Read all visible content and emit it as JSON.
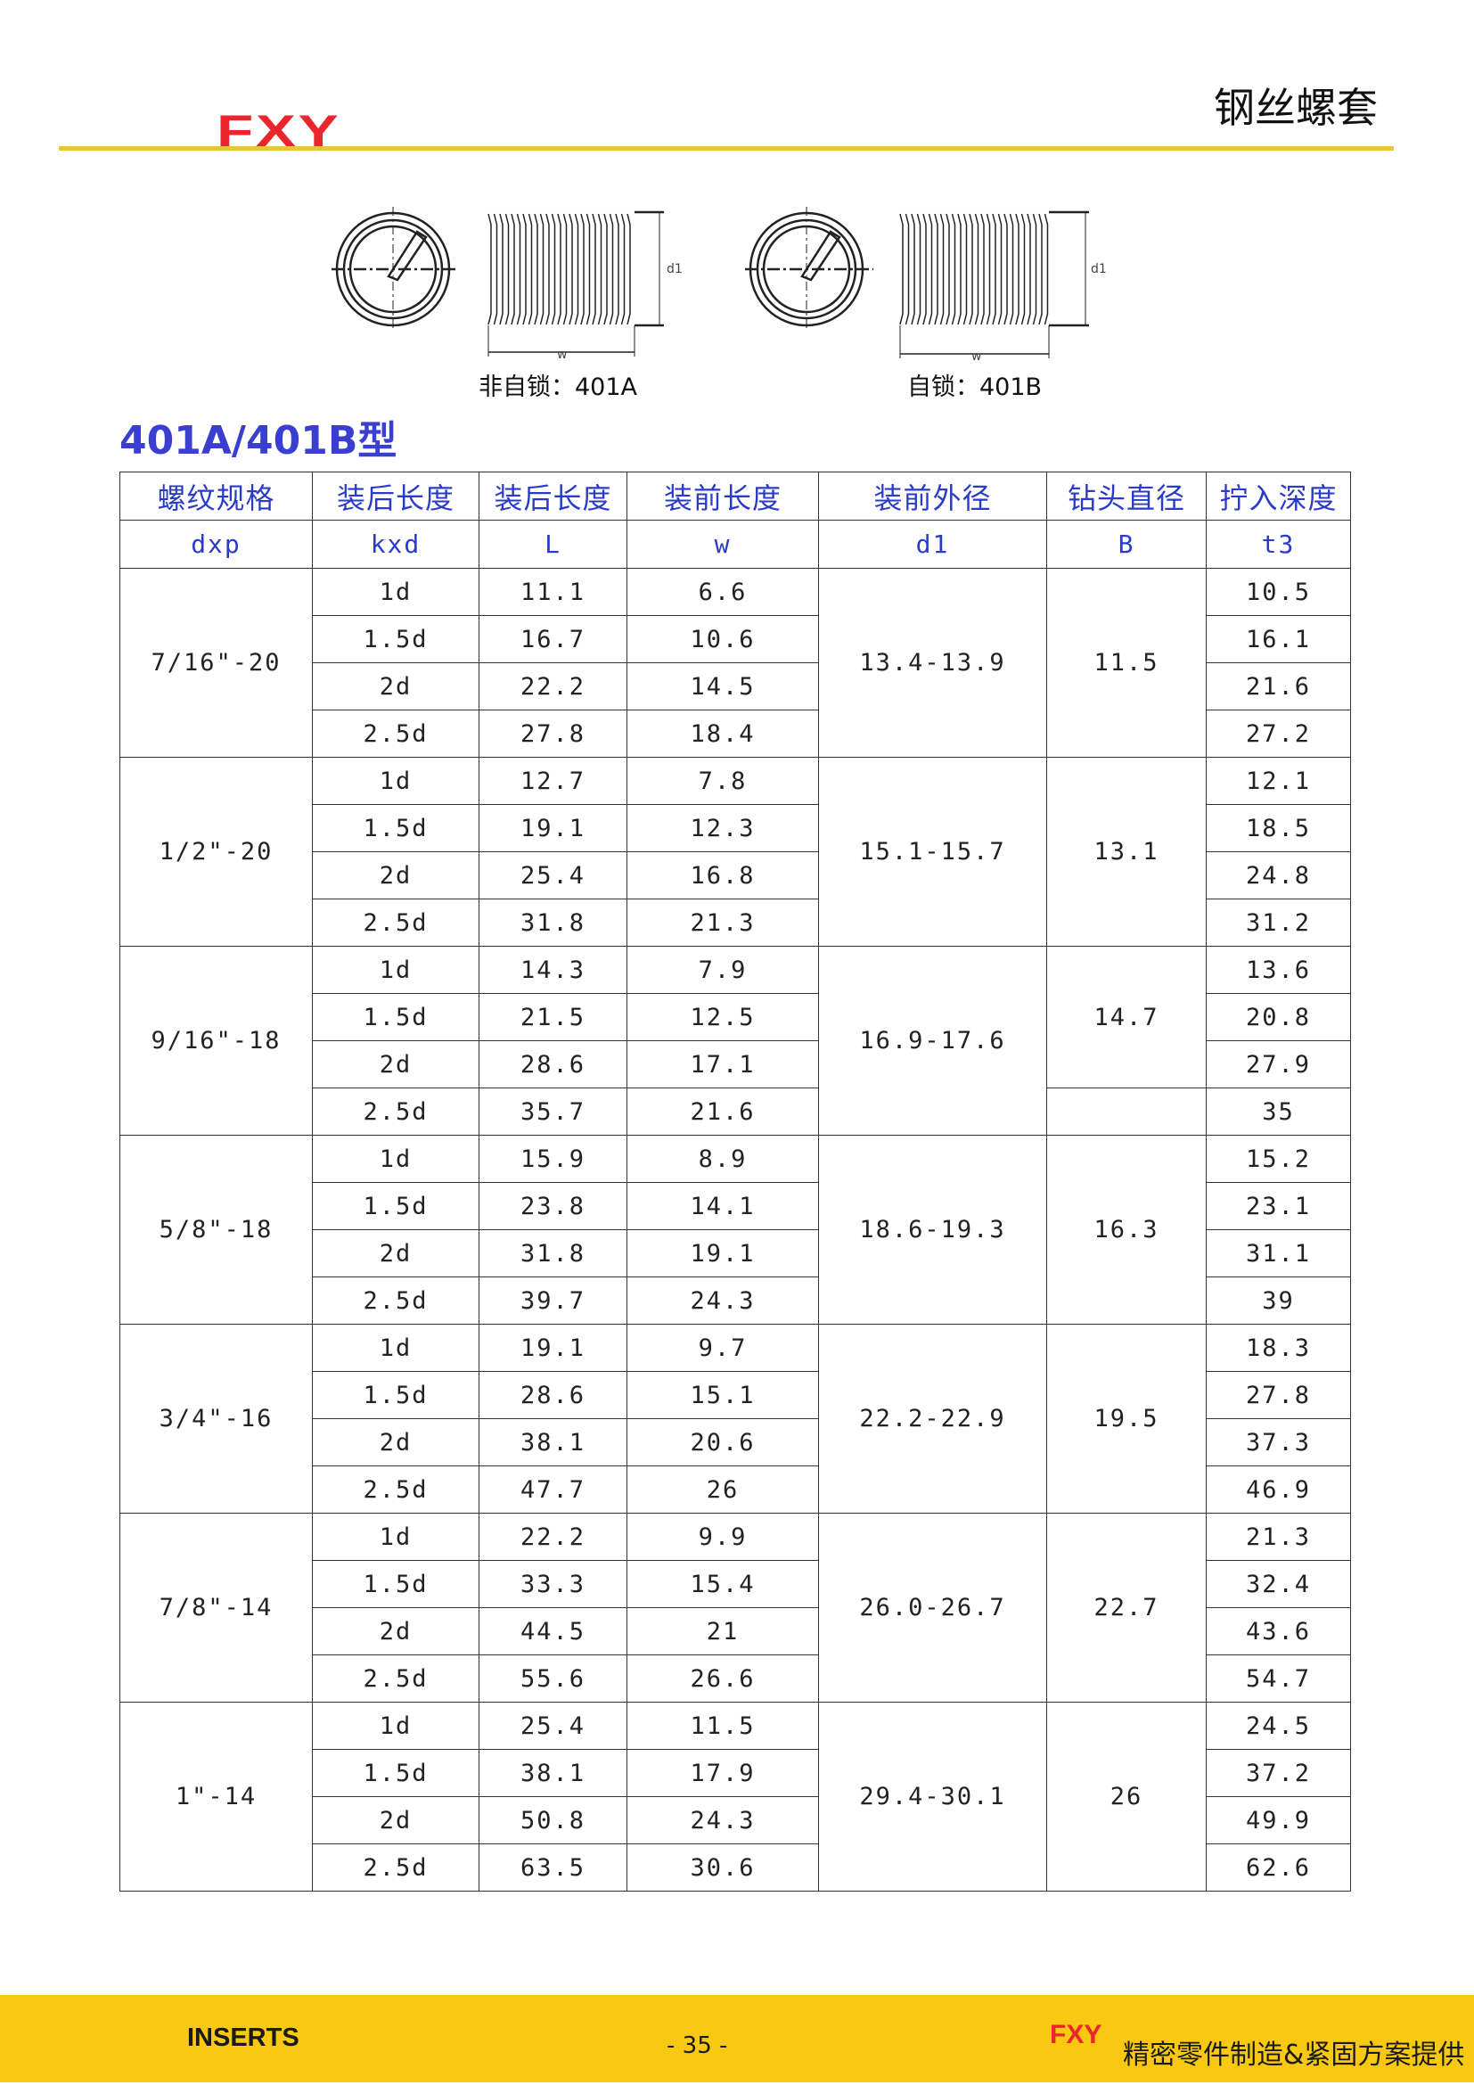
{
  "header": {
    "logo": "FXY",
    "title": "钢丝螺套",
    "rule_color": "#e8c53a"
  },
  "diagrams": [
    {
      "caption": "非自锁：401A",
      "dim_d": "d1",
      "dim_w": "w"
    },
    {
      "caption": "自锁：401B",
      "dim_d": "d1",
      "dim_w": "w"
    }
  ],
  "section_title": "401A/401B型",
  "table": {
    "headers": [
      "螺纹规格",
      "装后长度",
      "装后长度",
      "装前长度",
      "装前外径",
      "钻头直径",
      "拧入深度"
    ],
    "symbols": [
      "dxp",
      "kxd",
      "L",
      "w",
      "d1",
      "B",
      "t3"
    ],
    "groups": [
      {
        "spec": "7/16\"-20",
        "d1": "13.4-13.9",
        "B_cells": [
          {
            "value": "11.5",
            "rows": 4
          }
        ],
        "rows": [
          [
            "1d",
            "11.1",
            "6.6",
            "10.5"
          ],
          [
            "1.5d",
            "16.7",
            "10.6",
            "16.1"
          ],
          [
            "2d",
            "22.2",
            "14.5",
            "21.6"
          ],
          [
            "2.5d",
            "27.8",
            "18.4",
            "27.2"
          ]
        ]
      },
      {
        "spec": "1/2\"-20",
        "d1": "15.1-15.7",
        "B_cells": [
          {
            "value": "13.1",
            "rows": 4
          }
        ],
        "rows": [
          [
            "1d",
            "12.7",
            "7.8",
            "12.1"
          ],
          [
            "1.5d",
            "19.1",
            "12.3",
            "18.5"
          ],
          [
            "2d",
            "25.4",
            "16.8",
            "24.8"
          ],
          [
            "2.5d",
            "31.8",
            "21.3",
            "31.2"
          ]
        ]
      },
      {
        "spec": "9/16\"-18",
        "d1": "16.9-17.6",
        "B_cells": [
          {
            "value": "14.7",
            "rows": 3
          },
          {
            "value": "",
            "rows": 1
          }
        ],
        "rows": [
          [
            "1d",
            "14.3",
            "7.9",
            "13.6"
          ],
          [
            "1.5d",
            "21.5",
            "12.5",
            "20.8"
          ],
          [
            "2d",
            "28.6",
            "17.1",
            "27.9"
          ],
          [
            "2.5d",
            "35.7",
            "21.6",
            "35"
          ]
        ]
      },
      {
        "spec": "5/8\"-18",
        "d1": "18.6-19.3",
        "B_cells": [
          {
            "value": "16.3",
            "rows": 4
          }
        ],
        "rows": [
          [
            "1d",
            "15.9",
            "8.9",
            "15.2"
          ],
          [
            "1.5d",
            "23.8",
            "14.1",
            "23.1"
          ],
          [
            "2d",
            "31.8",
            "19.1",
            "31.1"
          ],
          [
            "2.5d",
            "39.7",
            "24.3",
            "39"
          ]
        ]
      },
      {
        "spec": "3/4\"-16",
        "d1": "22.2-22.9",
        "B_cells": [
          {
            "value": "19.5",
            "rows": 4
          }
        ],
        "rows": [
          [
            "1d",
            "19.1",
            "9.7",
            "18.3"
          ],
          [
            "1.5d",
            "28.6",
            "15.1",
            "27.8"
          ],
          [
            "2d",
            "38.1",
            "20.6",
            "37.3"
          ],
          [
            "2.5d",
            "47.7",
            "26",
            "46.9"
          ]
        ]
      },
      {
        "spec": "7/8\"-14",
        "d1": "26.0-26.7",
        "B_cells": [
          {
            "value": "22.7",
            "rows": 4
          }
        ],
        "rows": [
          [
            "1d",
            "22.2",
            "9.9",
            "21.3"
          ],
          [
            "1.5d",
            "33.3",
            "15.4",
            "32.4"
          ],
          [
            "2d",
            "44.5",
            "21",
            "43.6"
          ],
          [
            "2.5d",
            "55.6",
            "26.6",
            "54.7"
          ]
        ]
      },
      {
        "spec": "1\"-14",
        "d1": "29.4-30.1",
        "B_cells": [
          {
            "value": "26",
            "rows": 4
          }
        ],
        "rows": [
          [
            "1d",
            "25.4",
            "11.5",
            "24.5"
          ],
          [
            "1.5d",
            "38.1",
            "17.9",
            "37.2"
          ],
          [
            "2d",
            "50.8",
            "24.3",
            "49.9"
          ],
          [
            "2.5d",
            "63.5",
            "30.6",
            "62.6"
          ]
        ]
      }
    ]
  },
  "footer": {
    "left": "INSERTS",
    "page": "- 35 -",
    "logo": "FXY",
    "slogan": "精密零件制造&紧固方案提供",
    "color": "#f9c812"
  }
}
